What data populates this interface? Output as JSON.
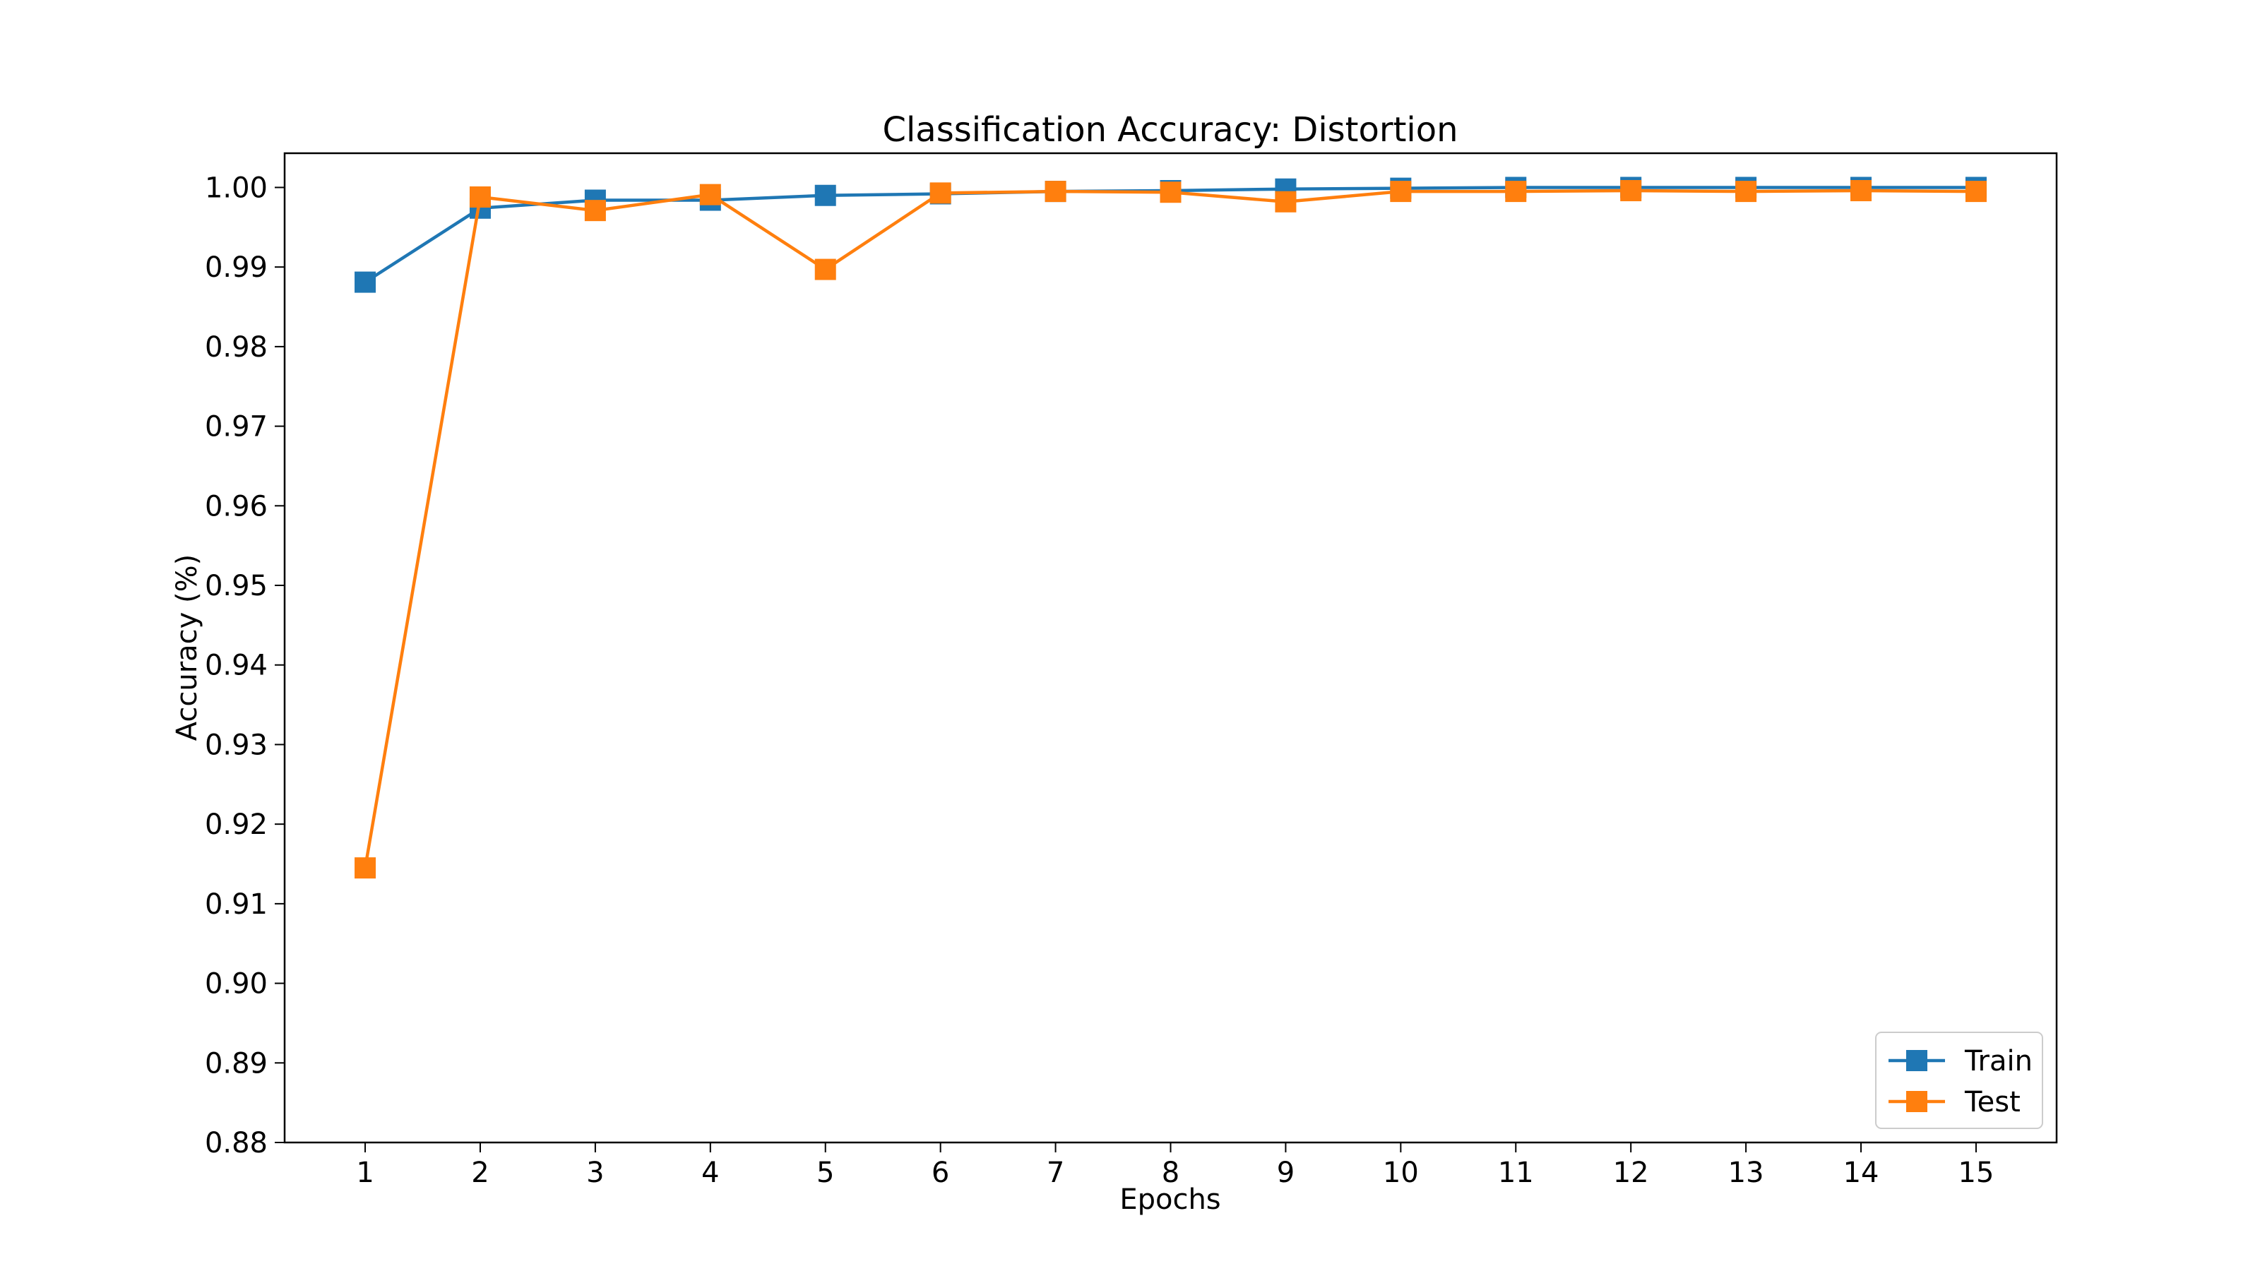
{
  "chart_data": {
    "type": "line",
    "title": "Classification Accuracy: Distortion",
    "xlabel": "Epochs",
    "ylabel": "Accuracy (%)",
    "x": [
      1,
      2,
      3,
      4,
      5,
      6,
      7,
      8,
      9,
      10,
      11,
      12,
      13,
      14,
      15
    ],
    "xticks": [
      "1",
      "2",
      "3",
      "4",
      "5",
      "6",
      "7",
      "8",
      "9",
      "10",
      "11",
      "12",
      "13",
      "14",
      "15"
    ],
    "xlim": [
      0.3,
      15.7
    ],
    "ylim": [
      0.88,
      1.0043
    ],
    "yticks": [
      "0.88",
      "0.89",
      "0.90",
      "0.91",
      "0.92",
      "0.93",
      "0.94",
      "0.95",
      "0.96",
      "0.97",
      "0.98",
      "0.99",
      "1.00"
    ],
    "grid": false,
    "legend_position": "bottom-right",
    "marker": "square",
    "series": [
      {
        "name": "Train",
        "color": "#1f77b4",
        "values": [
          0.9881,
          0.9974,
          0.9984,
          0.9984,
          0.999,
          0.9992,
          0.9995,
          0.9996,
          0.9998,
          0.9999,
          1.0,
          1.0,
          1.0,
          1.0,
          1.0
        ]
      },
      {
        "name": "Test",
        "color": "#ff7f0e",
        "values": [
          0.9145,
          0.9988,
          0.9971,
          0.9991,
          0.9897,
          0.9993,
          0.9995,
          0.9994,
          0.9982,
          0.9995,
          0.9995,
          0.9996,
          0.9995,
          0.9996,
          0.9995
        ]
      }
    ]
  }
}
